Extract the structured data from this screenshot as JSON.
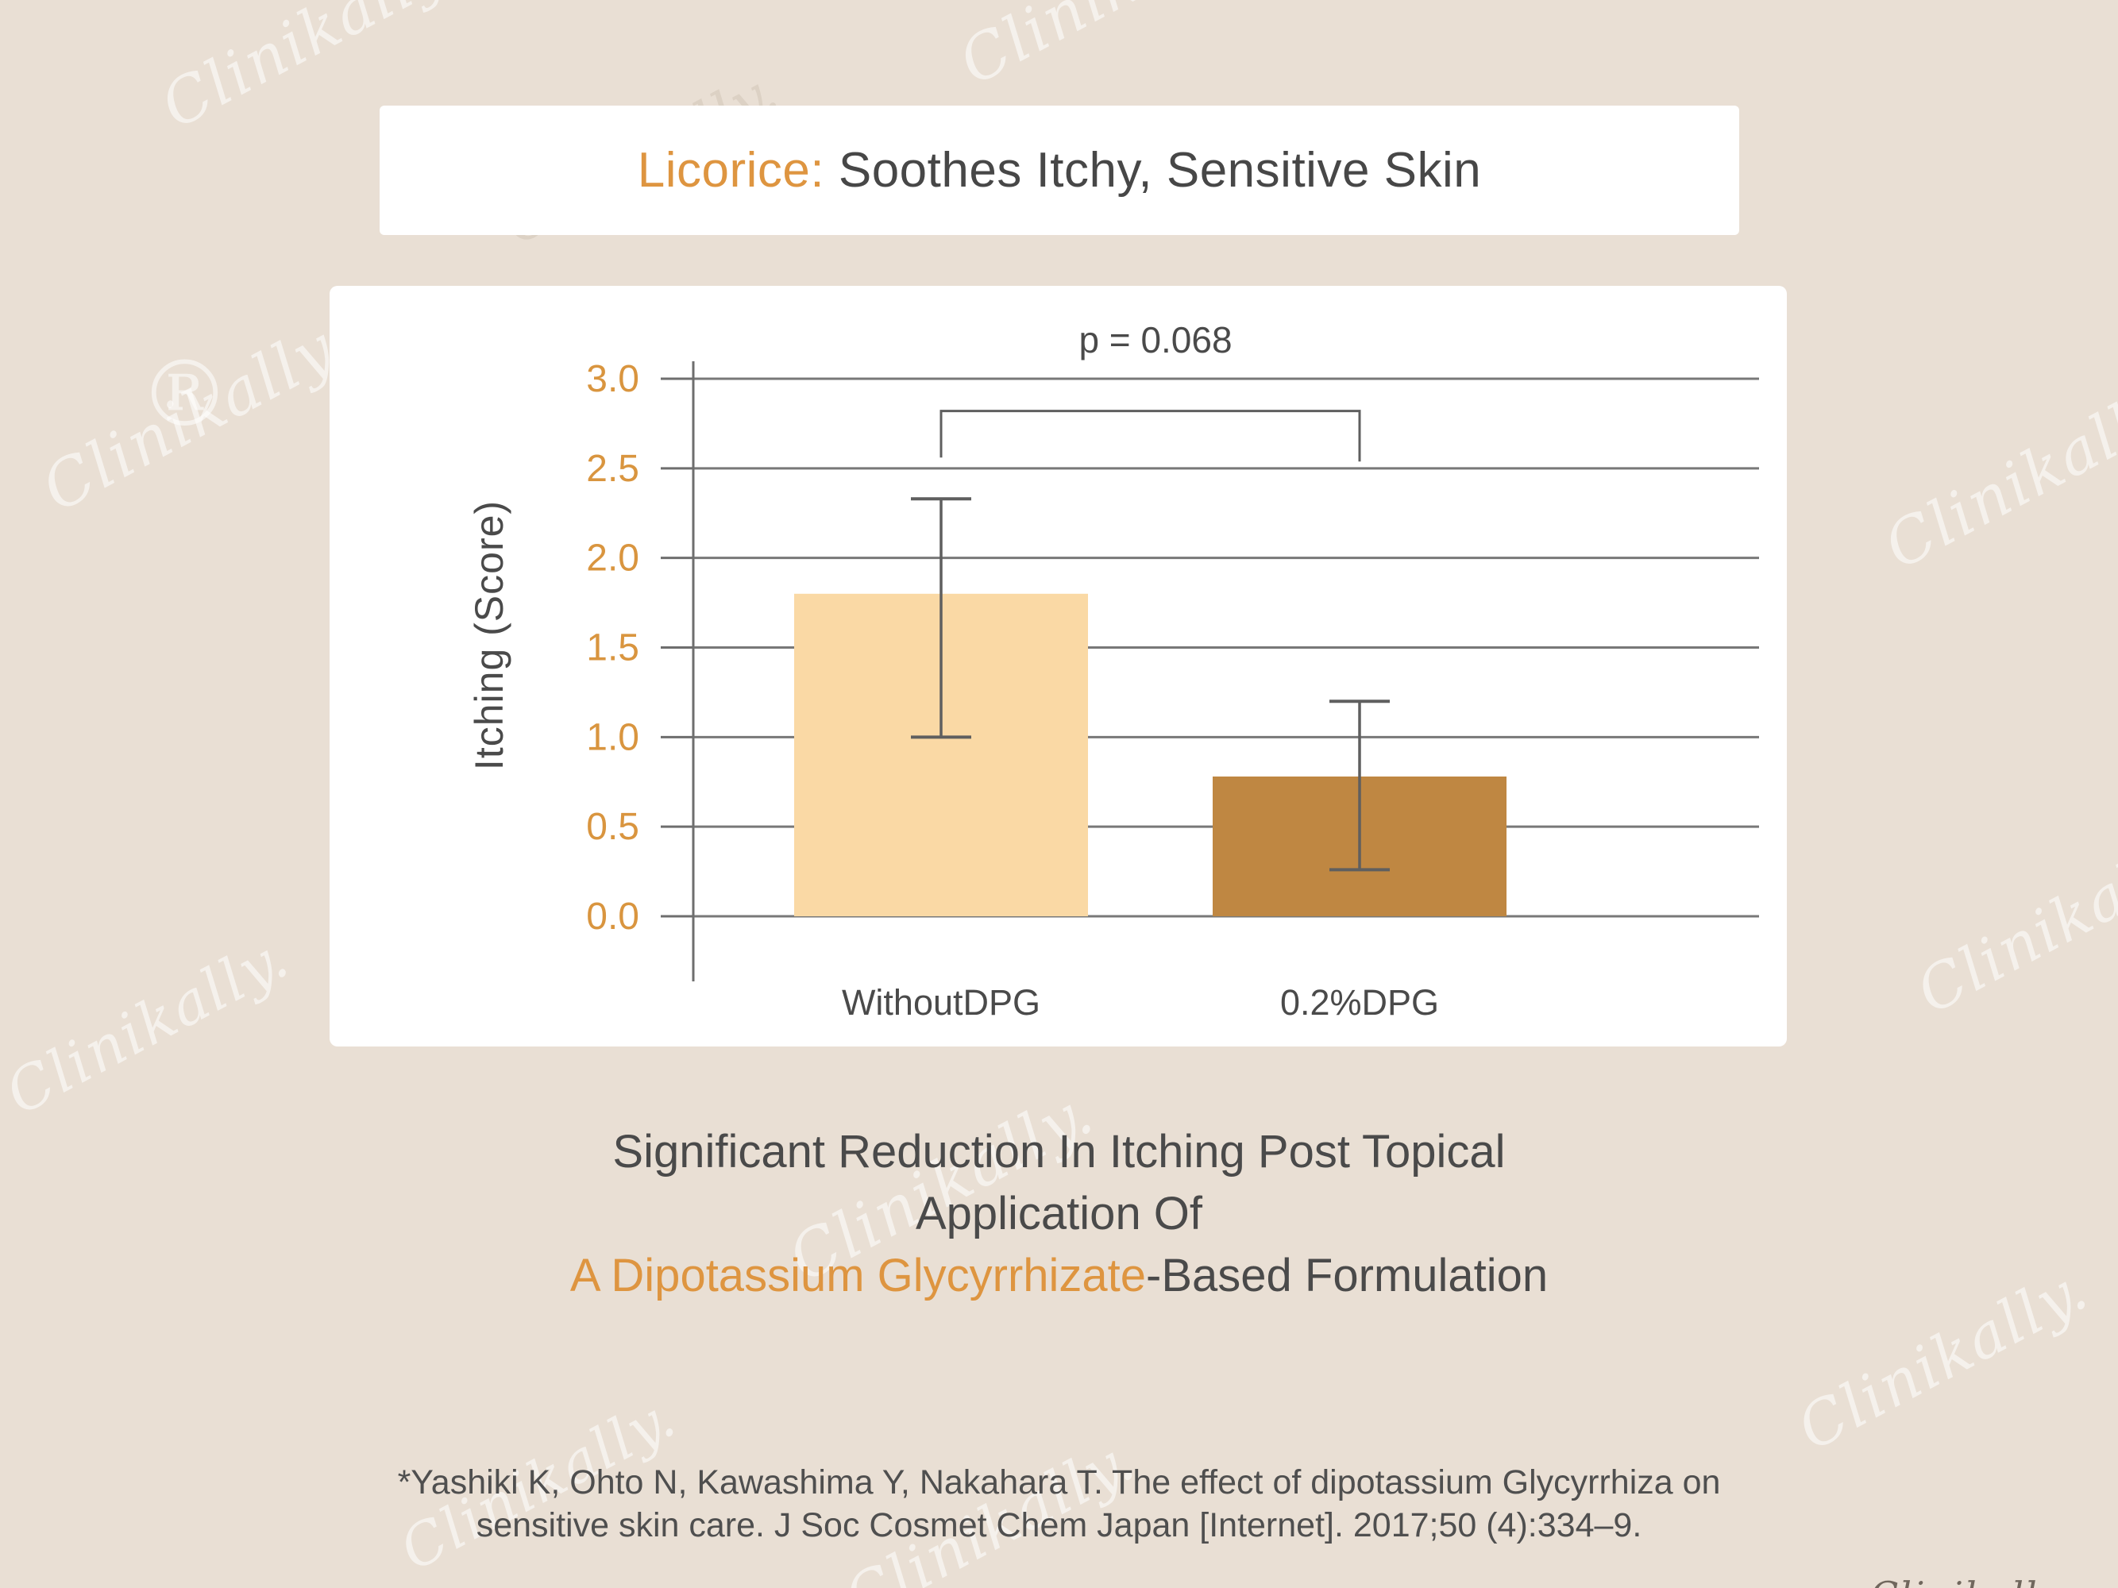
{
  "watermark": {
    "text": "Clinikally.",
    "reg": "®"
  },
  "title": {
    "highlight": "Licorice:",
    "rest": " Soothes Itchy, Sensitive Skin"
  },
  "chart_data": {
    "type": "bar",
    "categories": [
      "WithoutDPG",
      "0.2%DPG"
    ],
    "values": [
      1.8,
      0.78
    ],
    "error_low": [
      1.0,
      0.26
    ],
    "error_high": [
      2.33,
      1.2
    ],
    "ylabel": "Itching (Score)",
    "xlabel": "",
    "ylim": [
      0,
      3
    ],
    "yticks": [
      "0.0",
      "0.5",
      "1.0",
      "1.5",
      "2.0",
      "2.5",
      "3.0"
    ],
    "grid": true,
    "legend_position": "none",
    "significance": {
      "label": "p = 0.068",
      "from": "WithoutDPG",
      "to": "0.2%DPG",
      "bracket_top_value": 2.82,
      "bracket_drop_value": 2.56
    },
    "bar_colors": [
      "#FAD9A5",
      "#BF8742"
    ],
    "grid_color": "#787878",
    "axis_color": "#6E6E6E",
    "error_color": "#5F5F5F",
    "tick_label_color": "#D9953F",
    "text_color": "#4A4A4A"
  },
  "caption": {
    "line1": "Significant Reduction In Itching Post Topical",
    "line2": "Application Of",
    "line3_highlight": "A Dipotassium Glycyrrhizate",
    "line3_rest": "-Based Formulation"
  },
  "citation": {
    "line1": "*Yashiki K, Ohto N, Kawashima Y, Nakahara T. The effect of dipotassium Glycyrrhiza on",
    "line2": "sensitive skin care. J Soc Cosmet Chem Japan [Internet]. 2017;50 (4):334–9."
  },
  "colors": {
    "background": "#E9DFD4",
    "panel": "#FFFFFF",
    "accent_orange": "#DE9540",
    "text_gray": "#474747"
  }
}
